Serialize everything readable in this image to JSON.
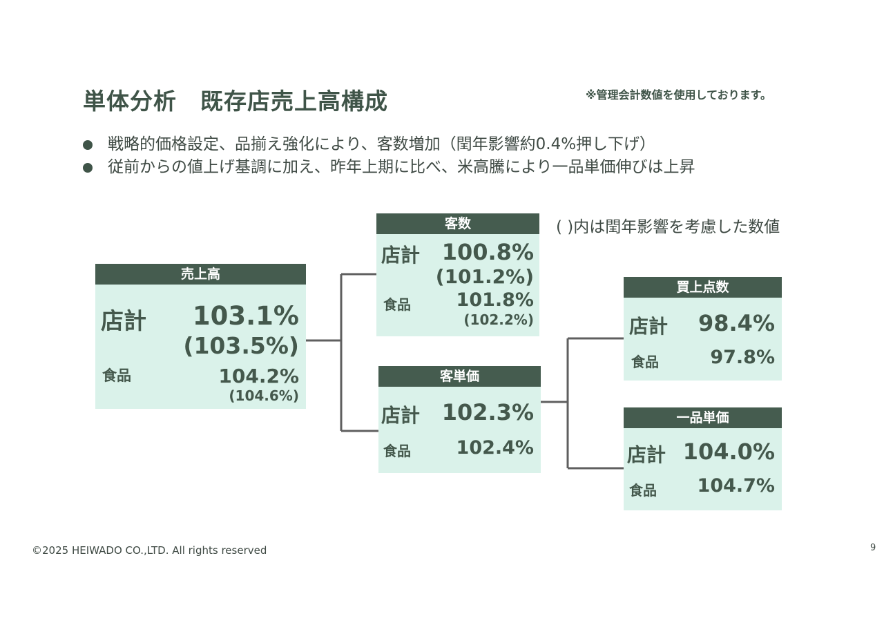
{
  "title": "単体分析　既存店売上高構成",
  "note": "※管理会計数値を使用しております。",
  "bullets": [
    "戦略的価格設定、品揃え強化により、客数増加（閏年影響約0.4%押し下げ）",
    "従前からの値上げ基調に加え、昨年上期に比べ、米高騰により一品単価伸びは上昇"
  ],
  "paren_note": "( )内は閏年影響を考慮した数値",
  "sales": {
    "header": "売上高",
    "store_label": "店計",
    "store_value": "103.1%",
    "store_adj": "(103.5%)",
    "food_label": "食品",
    "food_value": "104.2%",
    "food_adj": "(104.6%)"
  },
  "customers": {
    "header": "客数",
    "store_label": "店計",
    "store_value": "100.8%",
    "store_adj": "(101.2%)",
    "food_label": "食品",
    "food_value": "101.8%",
    "food_adj": "(102.2%)"
  },
  "spend": {
    "header": "客単価",
    "store_label": "店計",
    "store_value": "102.3%",
    "food_label": "食品",
    "food_value": "102.4%"
  },
  "items": {
    "header": "買上点数",
    "store_label": "店計",
    "store_value": "98.4%",
    "food_label": "食品",
    "food_value": "97.8%"
  },
  "unit_price": {
    "header": "一品単価",
    "store_label": "店計",
    "store_value": "104.0%",
    "food_label": "食品",
    "food_value": "104.7%"
  },
  "footer": "©2025  HEIWADO CO.,LTD.  All rights reserved",
  "page_number": "9",
  "colors": {
    "header_bg": "#455c4f",
    "box_bg": "#daf2ea",
    "text": "#44584c",
    "line": "#5f5f5f"
  }
}
